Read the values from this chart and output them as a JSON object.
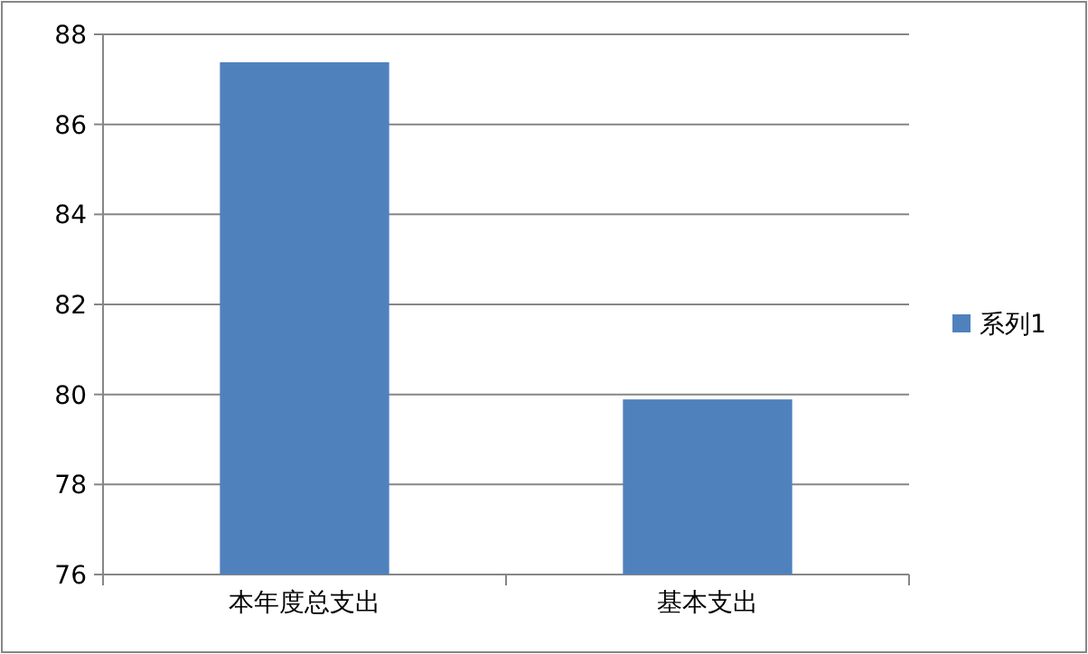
{
  "chart_data": {
    "type": "bar",
    "categories": [
      "本年度总支出",
      "基本支出"
    ],
    "series": [
      {
        "name": "系列1",
        "color": "#4f81bd",
        "values": [
          87.38,
          79.89
        ]
      }
    ],
    "ylim": [
      76,
      88
    ],
    "yticks": [
      76,
      78,
      80,
      82,
      84,
      86,
      88
    ],
    "grid": "y",
    "legend": "right"
  }
}
